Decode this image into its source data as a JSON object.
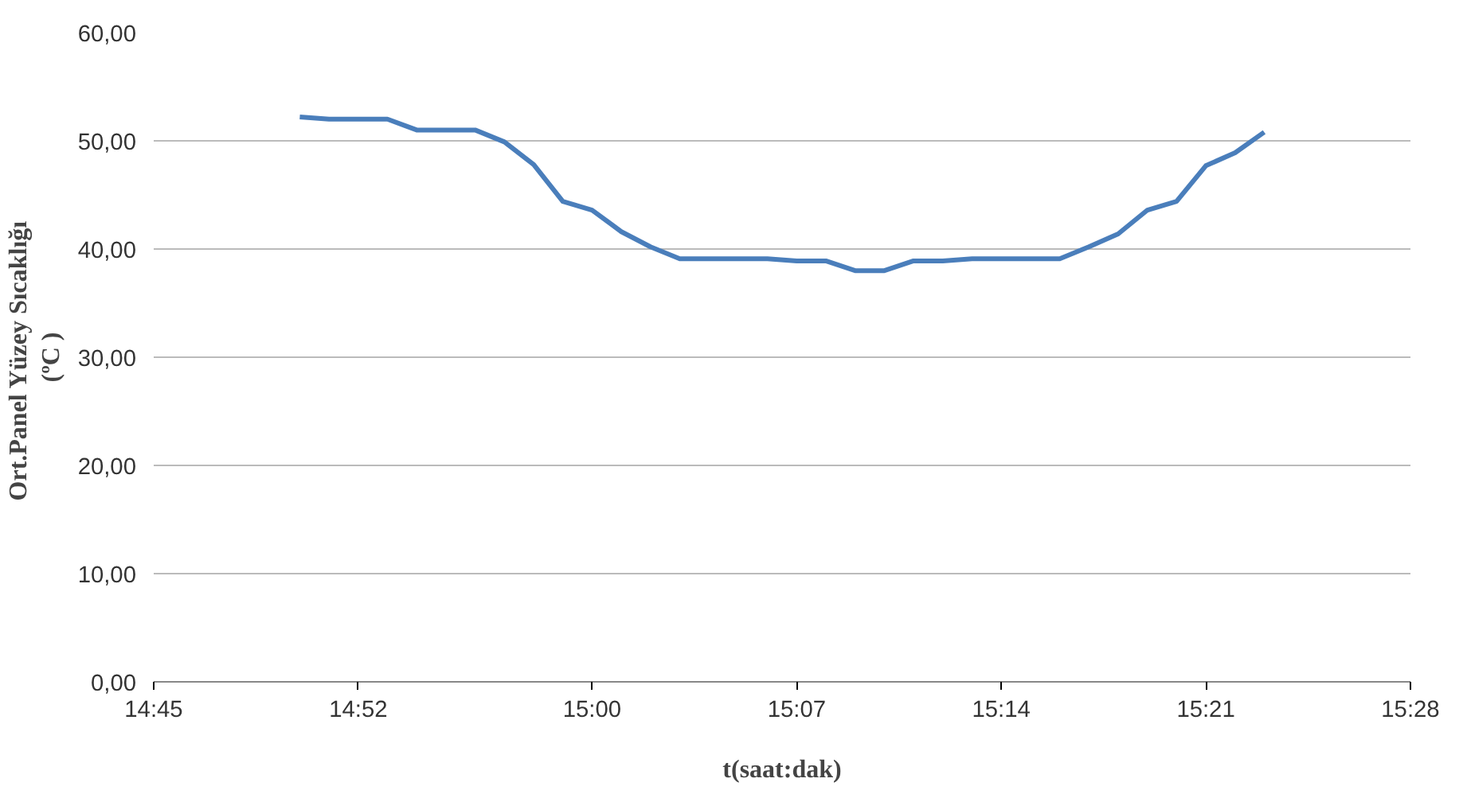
{
  "chart_data": {
    "type": "line",
    "xlabel": "t(saat:dak)",
    "ylabel": "Ort.Panel  Yüzey Sıcaklığı\n(ºC )",
    "x": [
      14.8333,
      14.85,
      14.8667,
      14.8833,
      14.9,
      14.9167,
      14.9333,
      14.95,
      14.9667,
      14.9833,
      15.0,
      15.0167,
      15.0333,
      15.05,
      15.0667,
      15.0833,
      15.1,
      15.1167,
      15.1333,
      15.15,
      15.1667,
      15.1833,
      15.2,
      15.2167,
      15.2333,
      15.25,
      15.2667,
      15.2833,
      15.3,
      15.3167,
      15.3333,
      15.35,
      15.3667,
      15.3833
    ],
    "series": [
      {
        "color": "#4a7ebb",
        "values": [
          52.2,
          52.0,
          52.0,
          52.0,
          51.0,
          51.0,
          51.0,
          49.9,
          47.8,
          44.4,
          43.6,
          41.6,
          40.2,
          39.1,
          39.1,
          39.1,
          39.1,
          38.9,
          38.9,
          38.0,
          38.0,
          38.9,
          38.9,
          39.1,
          39.1,
          39.1,
          39.1,
          40.2,
          41.4,
          43.6,
          44.4,
          47.7,
          48.9,
          50.8
        ]
      }
    ],
    "xlim": [
      14.75,
      15.4667
    ],
    "xticks": [
      {
        "value": 14.75,
        "label": "14:45"
      },
      {
        "value": 14.8667,
        "label": "14:52"
      },
      {
        "value": 15.0,
        "label": "15:00"
      },
      {
        "value": 15.1167,
        "label": "15:07"
      },
      {
        "value": 15.2333,
        "label": "15:14"
      },
      {
        "value": 15.35,
        "label": "15:21"
      },
      {
        "value": 15.4667,
        "label": "15:28"
      }
    ],
    "ylim": [
      0,
      60
    ],
    "yticks": [
      {
        "value": 0,
        "label": "0,00"
      },
      {
        "value": 10,
        "label": "10,00"
      },
      {
        "value": 20,
        "label": "20,00"
      },
      {
        "value": 30,
        "label": "30,00"
      },
      {
        "value": 40,
        "label": "40,00"
      },
      {
        "value": 50,
        "label": "50,00"
      },
      {
        "value": 60,
        "label": "60,00"
      }
    ],
    "grid": "y",
    "marker": "none",
    "line_style": "solid"
  }
}
